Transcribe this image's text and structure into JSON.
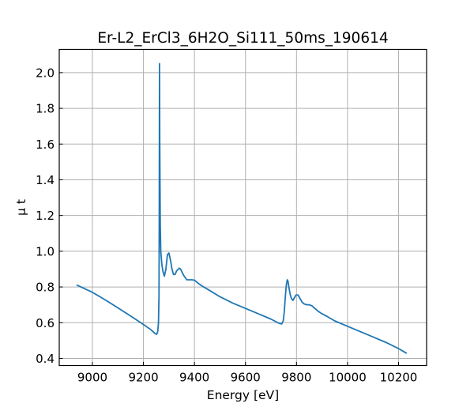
{
  "chart_data": {
    "type": "line",
    "title": "Er-L2_ErCl3_6H2O_Si111_50ms_190614",
    "xlabel": "Energy [eV]",
    "ylabel": "μ t",
    "xlim": [
      8870,
      10310
    ],
    "ylim": [
      0.36,
      2.13
    ],
    "xticks": [
      9000,
      9200,
      9400,
      9600,
      9800,
      10000,
      10200
    ],
    "yticks": [
      0.4,
      0.6,
      0.8,
      1.0,
      1.2,
      1.4,
      1.6,
      1.8,
      2.0
    ],
    "xtick_labels": [
      "9000",
      "9200",
      "9400",
      "9600",
      "9800",
      "10000",
      "10200"
    ],
    "ytick_labels": [
      "0.4",
      "0.6",
      "0.8",
      "1.0",
      "1.2",
      "1.4",
      "1.6",
      "1.8",
      "2.0"
    ],
    "grid": true,
    "legend": "none",
    "line_color": "#1f77b4",
    "series": [
      {
        "x": [
          8940,
          9000,
          9050,
          9100,
          9150,
          9200,
          9230,
          9245,
          9252,
          9256,
          9259,
          9261,
          9262,
          9263,
          9264,
          9266,
          9268,
          9272,
          9276,
          9282,
          9288,
          9294,
          9300,
          9306,
          9312,
          9318,
          9324,
          9330,
          9340,
          9346,
          9352,
          9360,
          9370,
          9380,
          9390,
          9400,
          9415,
          9430,
          9460,
          9500,
          9550,
          9600,
          9650,
          9700,
          9720,
          9735,
          9742,
          9748,
          9752,
          9756,
          9760,
          9764,
          9767,
          9770,
          9775,
          9780,
          9786,
          9792,
          9798,
          9806,
          9814,
          9822,
          9830,
          9840,
          9850,
          9860,
          9872,
          9884,
          9900,
          9920,
          9950,
          10000,
          10050,
          10100,
          10150,
          10200,
          10230
        ],
        "y": [
          0.81,
          0.77,
          0.728,
          0.683,
          0.637,
          0.59,
          0.56,
          0.54,
          0.535,
          0.55,
          0.6,
          0.75,
          1.2,
          2.05,
          1.6,
          1.15,
          1.0,
          0.93,
          0.89,
          0.86,
          0.9,
          0.98,
          0.99,
          0.95,
          0.9,
          0.87,
          0.87,
          0.89,
          0.905,
          0.9,
          0.88,
          0.86,
          0.84,
          0.84,
          0.84,
          0.838,
          0.82,
          0.805,
          0.78,
          0.745,
          0.71,
          0.68,
          0.65,
          0.62,
          0.605,
          0.595,
          0.593,
          0.61,
          0.66,
          0.74,
          0.81,
          0.84,
          0.83,
          0.8,
          0.76,
          0.735,
          0.725,
          0.74,
          0.755,
          0.755,
          0.735,
          0.715,
          0.705,
          0.7,
          0.7,
          0.695,
          0.68,
          0.665,
          0.65,
          0.635,
          0.61,
          0.58,
          0.55,
          0.52,
          0.49,
          0.455,
          0.43
        ]
      }
    ]
  }
}
